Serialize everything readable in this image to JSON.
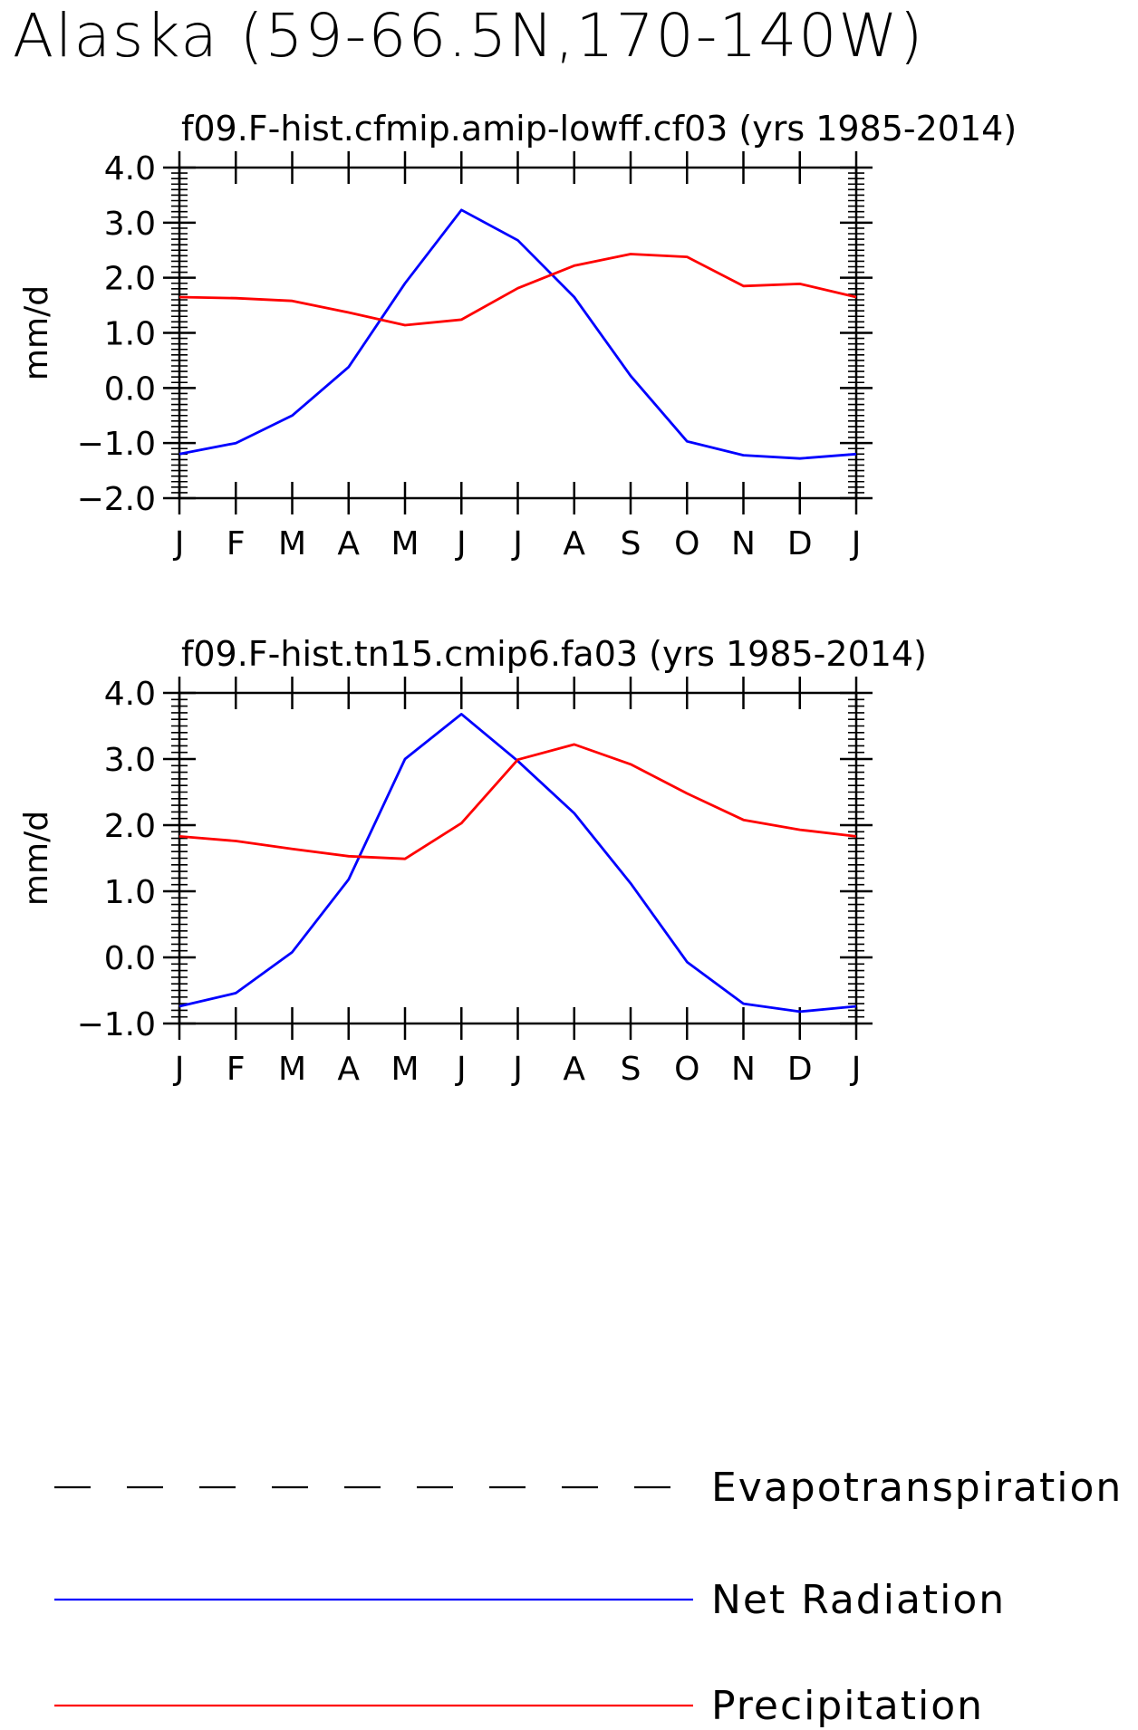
{
  "page_title": "Alaska (59-66.5N,170-140W)",
  "legend": [
    {
      "label": "Evapotranspiration",
      "color": "#000000",
      "style": "dashed"
    },
    {
      "label": "Net Radiation",
      "color": "#0000ff",
      "style": "solid"
    },
    {
      "label": "Precipitation",
      "color": "#ff0000",
      "style": "solid"
    }
  ],
  "chart_data": [
    {
      "type": "line",
      "title": "f09.F-hist.cfmip.amip-lowff.cf03 (yrs 1985-2014)",
      "xlabel": "",
      "ylabel": "mm/d",
      "ylim": [
        -2.0,
        4.0
      ],
      "yticks": [
        "4.0",
        "3.0",
        "2.0",
        "1.0",
        "0.0",
        "-1.0",
        "-2.0"
      ],
      "categories": [
        "J",
        "F",
        "M",
        "A",
        "M",
        "J",
        "J",
        "A",
        "S",
        "O",
        "N",
        "D",
        "J"
      ],
      "series": [
        {
          "name": "Net Radiation",
          "color": "#0000ff",
          "values": [
            -1.2,
            -1.0,
            -0.5,
            0.38,
            1.9,
            3.23,
            2.68,
            1.65,
            0.22,
            -0.97,
            -1.22,
            -1.28,
            -1.2
          ]
        },
        {
          "name": "Precipitation",
          "color": "#ff0000",
          "values": [
            1.65,
            1.63,
            1.58,
            1.37,
            1.14,
            1.24,
            1.81,
            2.22,
            2.43,
            2.38,
            1.85,
            1.89,
            1.65
          ]
        }
      ]
    },
    {
      "type": "line",
      "title": "f09.F-hist.tn15.cmip6.fa03 (yrs 1985-2014)",
      "xlabel": "",
      "ylabel": "mm/d",
      "ylim": [
        -1.0,
        4.0
      ],
      "yticks": [
        "4.0",
        "3.0",
        "2.0",
        "1.0",
        "0.0",
        "-1.0"
      ],
      "categories": [
        "J",
        "F",
        "M",
        "A",
        "M",
        "J",
        "J",
        "A",
        "S",
        "O",
        "N",
        "D",
        "J"
      ],
      "series": [
        {
          "name": "Net Radiation",
          "color": "#0000ff",
          "values": [
            -0.74,
            -0.54,
            0.08,
            1.18,
            3.0,
            3.68,
            2.97,
            2.18,
            1.12,
            -0.07,
            -0.7,
            -0.82,
            -0.74
          ]
        },
        {
          "name": "Precipitation",
          "color": "#ff0000",
          "values": [
            1.83,
            1.76,
            1.64,
            1.53,
            1.49,
            2.03,
            2.99,
            3.22,
            2.92,
            2.48,
            2.08,
            1.93,
            1.83
          ]
        }
      ]
    }
  ]
}
